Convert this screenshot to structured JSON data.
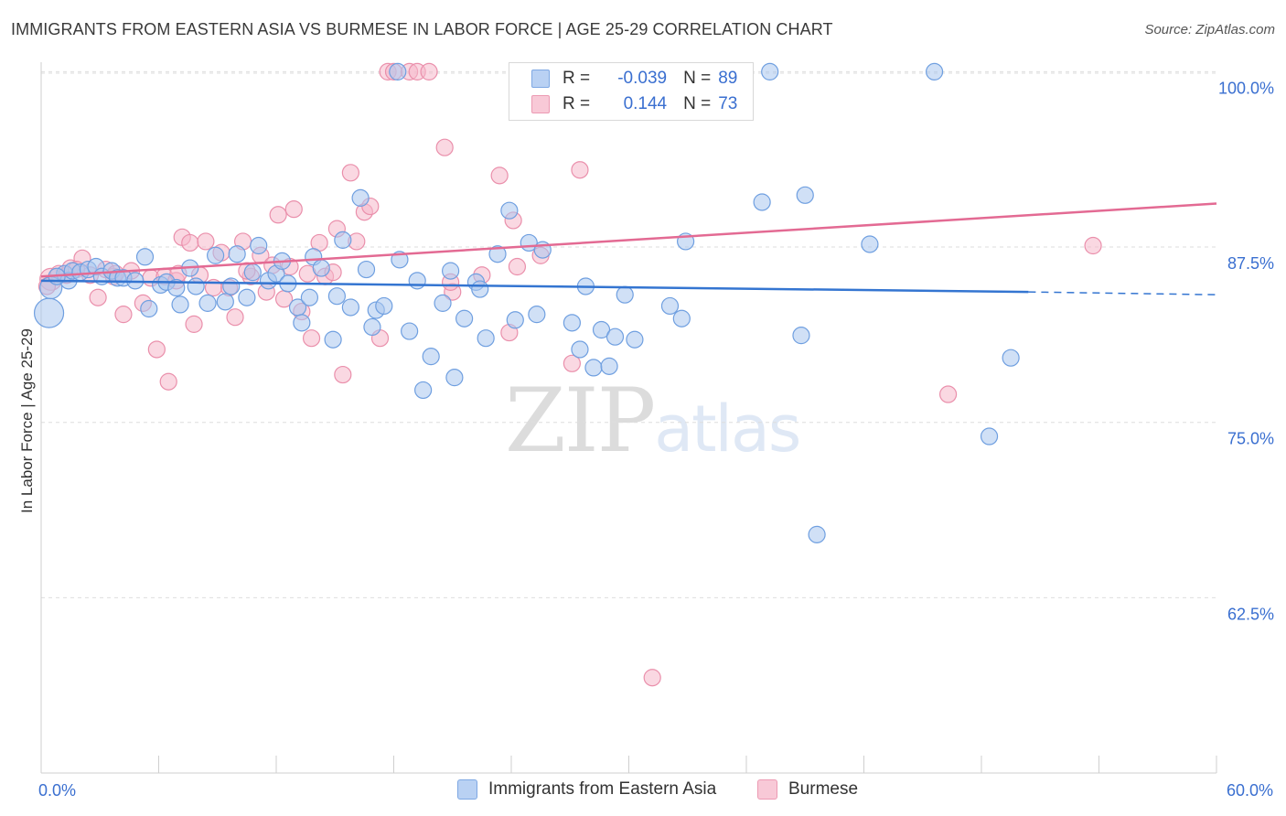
{
  "header": {
    "title": "IMMIGRANTS FROM EASTERN ASIA VS BURMESE IN LABOR FORCE | AGE 25-29 CORRELATION CHART",
    "source": "Source: ZipAtlas.com"
  },
  "watermark": {
    "zip": "ZIP",
    "atlas": "atlas"
  },
  "legend": {
    "rows": [
      {
        "r_label": "R =",
        "r_value": "-0.039",
        "n_label": "N =",
        "n_value": "89",
        "color": "#a9c6ef"
      },
      {
        "r_label": "R =",
        "r_value": "0.144",
        "n_label": "N =",
        "n_value": "73",
        "color": "#f5b8cb"
      }
    ]
  },
  "bottom_legend": {
    "series1": "Immigrants from Eastern Asia",
    "series2": "Burmese"
  },
  "colors": {
    "blue_fill": "#a9c6ef",
    "blue_stroke": "#6f9fe0",
    "blue_line": "#3475d1",
    "pink_fill": "#f5b8cb",
    "pink_stroke": "#ea8fab",
    "pink_line": "#e36a93",
    "tick_text": "#3a6fd0",
    "grid": "#dedede"
  },
  "chart_data": {
    "type": "scatter",
    "title": "IMMIGRANTS FROM EASTERN ASIA VS BURMESE IN LABOR FORCE | AGE 25-29 CORRELATION CHART",
    "xlabel": "",
    "ylabel": "In Labor Force | Age 25-29",
    "xlim": [
      0,
      60
    ],
    "ylim": [
      50,
      101.2
    ],
    "x_tick_labels": [
      "0.0%",
      "60.0%"
    ],
    "y_ticks": [
      62.5,
      75.0,
      87.5,
      100.0
    ],
    "y_tick_labels": [
      "62.5%",
      "75.0%",
      "87.5%",
      "100.0%"
    ],
    "grid": true,
    "legend_position": "top-center",
    "series": [
      {
        "name": "Immigrants from Eastern Asia",
        "color": "#a9c6ef",
        "trend": {
          "x": [
            0,
            50.4
          ],
          "y": [
            85.1,
            84.3
          ],
          "dashed_to_x": 60,
          "dashed_y_end": 84.1
        },
        "points": [
          [
            0.4,
            82.8,
            16
          ],
          [
            0.5,
            84.6,
            12
          ],
          [
            1.2,
            85.6,
            9
          ],
          [
            1.4,
            85.1,
            9
          ],
          [
            1.6,
            85.8,
            9
          ],
          [
            2.0,
            85.7,
            9
          ],
          [
            2.4,
            85.9,
            9
          ],
          [
            2.8,
            86.1,
            9
          ],
          [
            3.1,
            85.4,
            9
          ],
          [
            3.6,
            85.8,
            9
          ],
          [
            3.9,
            85.3,
            9
          ],
          [
            4.2,
            85.3,
            9
          ],
          [
            4.8,
            85.1,
            9
          ],
          [
            5.3,
            86.8,
            9
          ],
          [
            5.5,
            83.1,
            9
          ],
          [
            6.1,
            84.8,
            9
          ],
          [
            6.4,
            85.0,
            9
          ],
          [
            6.9,
            84.6,
            9
          ],
          [
            7.1,
            83.4,
            9
          ],
          [
            7.6,
            86.0,
            9
          ],
          [
            7.9,
            84.7,
            9
          ],
          [
            8.5,
            83.5,
            9
          ],
          [
            8.9,
            86.9,
            9
          ],
          [
            9.4,
            83.6,
            9
          ],
          [
            9.7,
            84.7,
            9
          ],
          [
            10.0,
            87.0,
            9
          ],
          [
            10.5,
            83.9,
            9
          ],
          [
            10.8,
            85.7,
            9
          ],
          [
            11.1,
            87.6,
            9
          ],
          [
            11.6,
            85.1,
            9
          ],
          [
            12.0,
            85.6,
            9
          ],
          [
            12.3,
            86.5,
            9
          ],
          [
            12.6,
            84.9,
            9
          ],
          [
            13.1,
            83.2,
            9
          ],
          [
            13.3,
            82.1,
            9
          ],
          [
            13.7,
            83.9,
            9
          ],
          [
            13.9,
            86.8,
            9
          ],
          [
            14.3,
            86.0,
            9
          ],
          [
            14.9,
            80.9,
            9
          ],
          [
            15.1,
            84.0,
            9
          ],
          [
            15.4,
            88.0,
            9
          ],
          [
            15.8,
            83.2,
            9
          ],
          [
            16.3,
            91.0,
            9
          ],
          [
            16.6,
            85.9,
            9
          ],
          [
            16.9,
            81.8,
            9
          ],
          [
            17.1,
            83.0,
            9
          ],
          [
            17.5,
            83.3,
            9
          ],
          [
            18.3,
            86.6,
            9
          ],
          [
            18.8,
            81.5,
            9
          ],
          [
            19.2,
            85.1,
            9
          ],
          [
            19.5,
            77.3,
            9
          ],
          [
            19.9,
            79.7,
            9
          ],
          [
            20.5,
            83.5,
            9
          ],
          [
            20.9,
            85.8,
            9
          ],
          [
            21.1,
            78.2,
            9
          ],
          [
            21.6,
            82.4,
            9
          ],
          [
            22.2,
            85.0,
            9
          ],
          [
            22.4,
            84.5,
            9
          ],
          [
            22.7,
            81.0,
            9
          ],
          [
            23.3,
            87.0,
            9
          ],
          [
            23.9,
            90.1,
            9
          ],
          [
            24.2,
            82.3,
            9
          ],
          [
            24.9,
            87.8,
            9
          ],
          [
            25.3,
            82.7,
            9
          ],
          [
            25.6,
            87.3,
            9
          ],
          [
            27.1,
            82.1,
            9
          ],
          [
            27.5,
            80.2,
            9
          ],
          [
            27.8,
            84.7,
            9
          ],
          [
            28.2,
            78.9,
            9
          ],
          [
            28.6,
            81.6,
            9
          ],
          [
            29.0,
            79.0,
            9
          ],
          [
            29.3,
            81.1,
            9
          ],
          [
            29.8,
            84.1,
            9
          ],
          [
            30.3,
            80.9,
            9
          ],
          [
            32.1,
            83.3,
            9
          ],
          [
            32.7,
            82.4,
            9
          ],
          [
            32.9,
            87.9,
            9
          ],
          [
            36.8,
            90.7,
            9
          ],
          [
            38.8,
            81.2,
            9
          ],
          [
            39.0,
            91.2,
            9
          ],
          [
            42.3,
            87.7,
            9
          ],
          [
            48.4,
            74.0,
            9
          ],
          [
            49.5,
            79.6,
            9
          ],
          [
            39.6,
            67.0,
            9
          ],
          [
            18.2,
            100.0,
            9
          ],
          [
            31.7,
            100.0,
            9
          ],
          [
            37.2,
            100.0,
            9
          ],
          [
            45.6,
            100.0,
            9
          ],
          [
            0.8,
            85.4,
            9
          ]
        ]
      },
      {
        "name": "Burmese",
        "color": "#f5b8cb",
        "trend": {
          "x": [
            0,
            60
          ],
          "y": [
            85.4,
            90.6
          ]
        },
        "points": [
          [
            0.5,
            85.2,
            12
          ],
          [
            0.9,
            85.6,
            9
          ],
          [
            1.3,
            85.5,
            9
          ],
          [
            1.5,
            86.0,
            9
          ],
          [
            2.1,
            86.7,
            9
          ],
          [
            2.5,
            85.5,
            9
          ],
          [
            2.9,
            83.9,
            9
          ],
          [
            3.3,
            85.9,
            9
          ],
          [
            3.7,
            85.4,
            9
          ],
          [
            4.2,
            82.7,
            9
          ],
          [
            4.6,
            85.8,
            9
          ],
          [
            5.2,
            83.5,
            9
          ],
          [
            5.6,
            85.3,
            9
          ],
          [
            5.9,
            80.2,
            9
          ],
          [
            6.3,
            85.4,
            9
          ],
          [
            6.5,
            77.9,
            9
          ],
          [
            6.9,
            85.1,
            9
          ],
          [
            7.2,
            88.2,
            9
          ],
          [
            7.6,
            87.8,
            9
          ],
          [
            7.8,
            82.0,
            9
          ],
          [
            8.1,
            85.5,
            9
          ],
          [
            8.4,
            87.9,
            9
          ],
          [
            8.8,
            84.6,
            9
          ],
          [
            9.2,
            87.1,
            9
          ],
          [
            9.6,
            84.6,
            9
          ],
          [
            9.9,
            82.5,
            9
          ],
          [
            10.3,
            87.9,
            9
          ],
          [
            10.7,
            85.4,
            9
          ],
          [
            11.2,
            86.9,
            9
          ],
          [
            11.5,
            84.3,
            9
          ],
          [
            11.8,
            86.2,
            9
          ],
          [
            12.1,
            89.8,
            9
          ],
          [
            12.4,
            83.8,
            9
          ],
          [
            12.7,
            86.1,
            9
          ],
          [
            12.9,
            90.2,
            9
          ],
          [
            13.3,
            82.9,
            9
          ],
          [
            13.6,
            85.6,
            9
          ],
          [
            13.8,
            81.0,
            9
          ],
          [
            14.2,
            87.8,
            9
          ],
          [
            14.5,
            85.4,
            9
          ],
          [
            14.9,
            85.7,
            9
          ],
          [
            15.1,
            88.8,
            9
          ],
          [
            15.4,
            78.4,
            9
          ],
          [
            15.8,
            92.8,
            9
          ],
          [
            16.1,
            87.9,
            9
          ],
          [
            16.5,
            90.0,
            9
          ],
          [
            16.8,
            90.4,
            9
          ],
          [
            17.3,
            81.0,
            9
          ],
          [
            17.7,
            100.0,
            9
          ],
          [
            18.0,
            100.0,
            9
          ],
          [
            18.8,
            100.0,
            9
          ],
          [
            19.2,
            100.0,
            9
          ],
          [
            19.8,
            100.0,
            9
          ],
          [
            20.6,
            94.6,
            9
          ],
          [
            21.0,
            84.3,
            9
          ],
          [
            22.5,
            85.5,
            9
          ],
          [
            23.4,
            92.6,
            9
          ],
          [
            23.9,
            81.4,
            9
          ],
          [
            24.1,
            89.4,
            9
          ],
          [
            24.3,
            86.1,
            9
          ],
          [
            25.5,
            86.9,
            9
          ],
          [
            27.1,
            79.2,
            9
          ],
          [
            27.5,
            93.0,
            9
          ],
          [
            29.3,
            100.0,
            9
          ],
          [
            31.2,
            56.8,
            9
          ],
          [
            46.3,
            77.0,
            9
          ],
          [
            53.7,
            87.6,
            9
          ],
          [
            10.5,
            85.8,
            9
          ],
          [
            20.9,
            85.0,
            9
          ],
          [
            7.0,
            85.6,
            9
          ],
          [
            3.8,
            85.6,
            9
          ],
          [
            1.8,
            85.9,
            9
          ],
          [
            0.3,
            84.7,
            9
          ]
        ]
      }
    ]
  }
}
